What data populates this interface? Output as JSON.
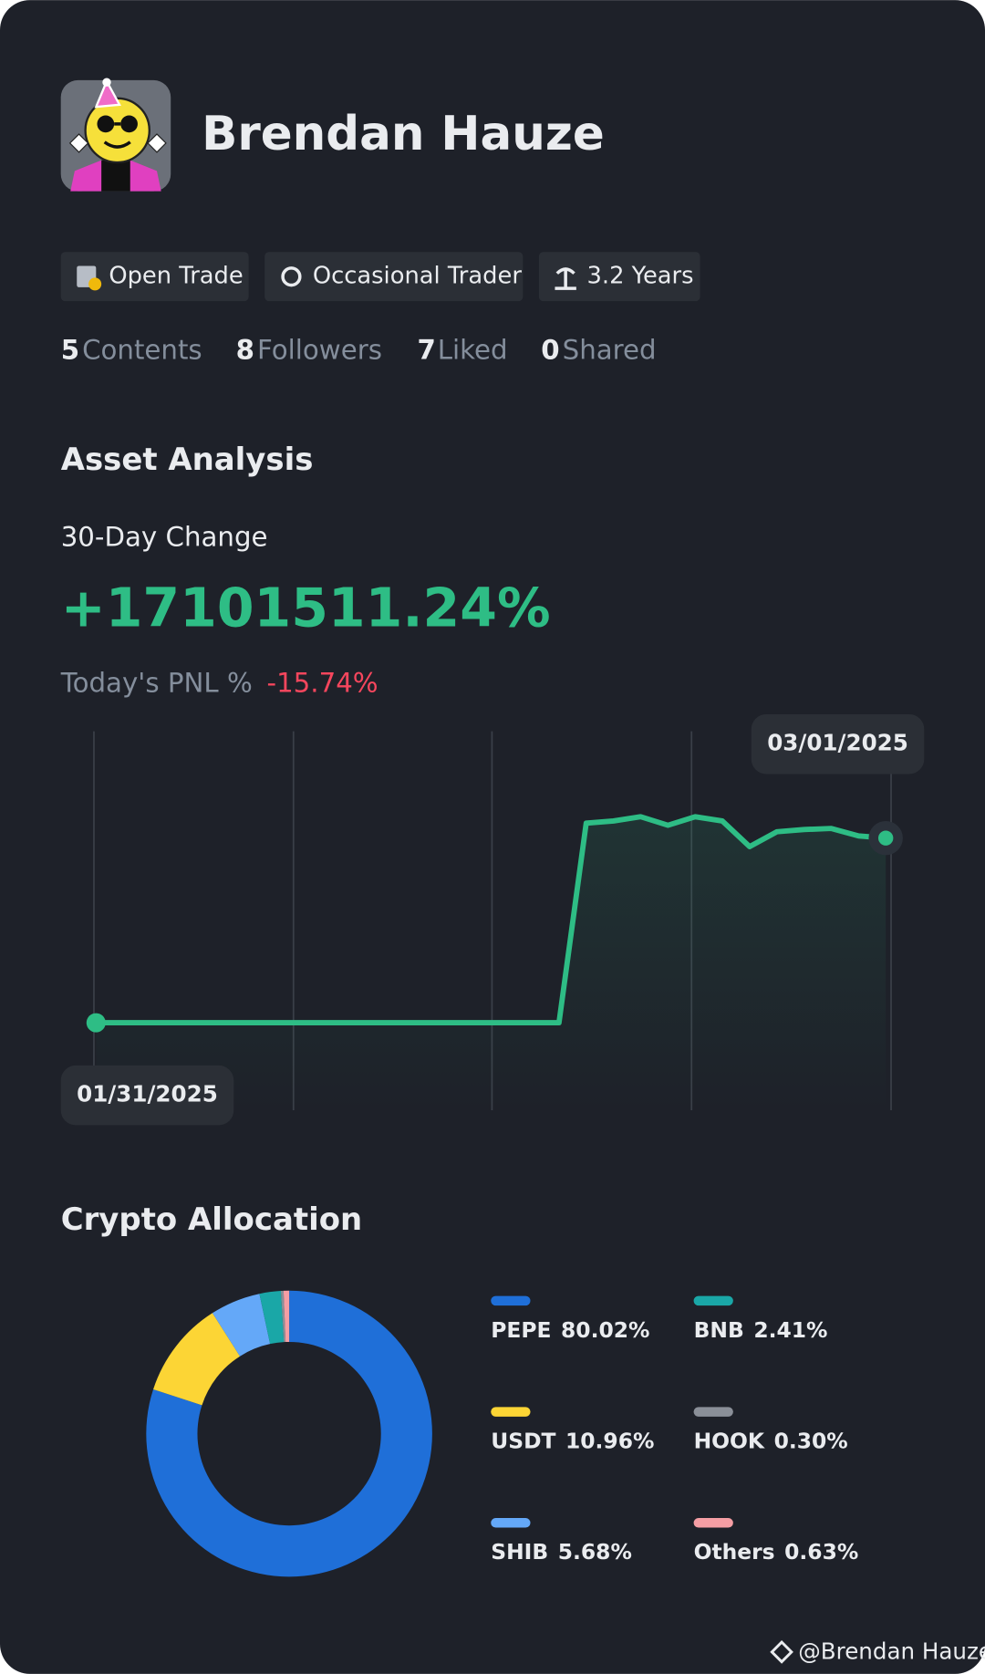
{
  "profile": {
    "name": "Brendan Hauze",
    "tags": [
      "Open Trade",
      "Occasional Trader",
      "3.2 Years"
    ],
    "stats": [
      {
        "value": 5,
        "label": "Contents"
      },
      {
        "value": 8,
        "label": "Followers"
      },
      {
        "value": 7,
        "label": "Liked"
      },
      {
        "value": 0,
        "label": "Shared"
      }
    ]
  },
  "asset_analysis": {
    "title": "Asset Analysis",
    "change_label": "30-Day Change",
    "change_value": "+17101511.24%",
    "pnl_label": "Today's PNL %",
    "pnl_value": "-15.74%"
  },
  "chart_data": [
    {
      "type": "line",
      "categories": [
        "01/31/2025",
        null,
        null,
        null,
        null,
        null,
        null,
        null,
        null,
        null,
        null,
        null,
        null,
        null,
        null,
        null,
        null,
        null,
        null,
        null,
        null,
        null,
        null,
        null,
        null,
        null,
        null,
        null,
        null,
        "03/01/2025"
      ],
      "values": [
        0,
        0,
        0,
        0,
        0,
        0,
        0,
        0,
        0,
        0,
        0,
        0,
        0,
        0,
        0,
        0,
        0,
        0,
        18490000,
        18680000,
        19080000,
        18290000,
        19080000,
        18680000,
        16310000,
        17690000,
        17890000,
        17990000,
        17300000,
        17101511.24
      ],
      "color": "#2ebd85"
    },
    {
      "type": "pie",
      "title": "Crypto Allocation",
      "categories": [
        "PEPE",
        "USDT",
        "SHIB",
        "BNB",
        "HOOK",
        "Others"
      ],
      "values": [
        80.02,
        10.96,
        5.68,
        2.41,
        0.3,
        0.63
      ],
      "value_labels": [
        "80.02%",
        "10.96%",
        "5.68%",
        "2.41%",
        "0.30%",
        "0.63%"
      ],
      "colors": [
        "#1f6fd8",
        "#fcd535",
        "#64a8f8",
        "#1aa7a7",
        "#8a8f98",
        "#f59ea4"
      ]
    }
  ],
  "watermark": "@Brendan Hauze"
}
